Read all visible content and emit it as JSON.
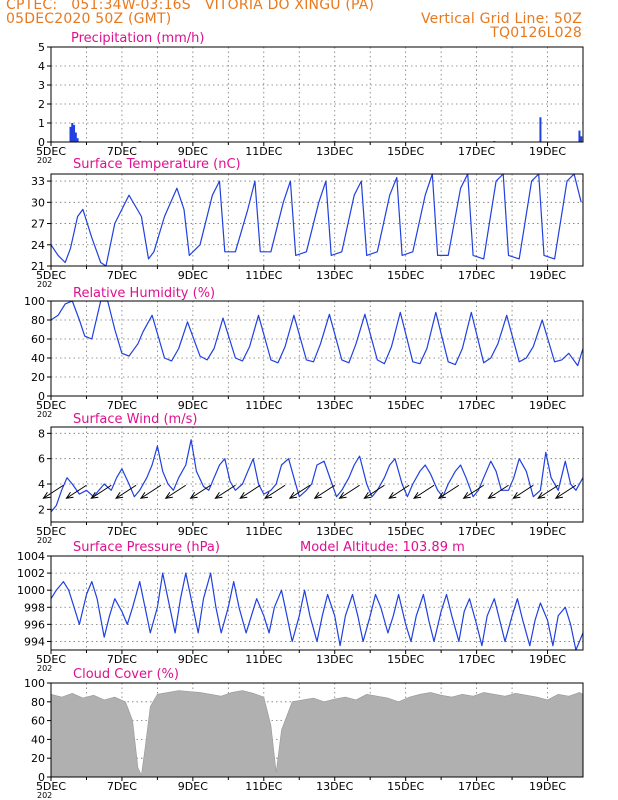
{
  "header": {
    "line1": "CPTEC:   051:34W-03:16S   VITORIA DO XINGU (PA)",
    "line2": "05DEC2020 50Z (GMT)",
    "grid_note": "Vertical Grid Line: 50Z",
    "code": "TQ0126L028"
  },
  "colors": {
    "header": "#e8791e",
    "panel_title": "#e0108f",
    "series": "#2040e0",
    "cloud": "#b0b0b0",
    "arrow": "#000000"
  },
  "x_ticks": [
    "5DEC",
    "7DEC",
    "9DEC",
    "11DEC",
    "13DEC",
    "15DEC",
    "17DEC",
    "19DEC"
  ],
  "x_year_stub": "202",
  "chart_data": [
    {
      "type": "bar",
      "title": "Precipitation (mm/h)",
      "ylim": [
        0,
        5
      ],
      "yticks": [
        "0",
        "1",
        "2",
        "3",
        "4",
        "5"
      ],
      "bars": [
        {
          "day": 0.55,
          "value": 0.8
        },
        {
          "day": 0.6,
          "value": 1.0
        },
        {
          "day": 0.65,
          "value": 0.9
        },
        {
          "day": 0.7,
          "value": 0.5
        },
        {
          "day": 0.75,
          "value": 0.2
        },
        {
          "day": 2.5,
          "value": 0.05
        },
        {
          "day": 8.0,
          "value": 0.05
        },
        {
          "day": 12.5,
          "value": 0.05
        },
        {
          "day": 13.8,
          "value": 1.3
        },
        {
          "day": 14.9,
          "value": 0.6
        },
        {
          "day": 14.95,
          "value": 0.3
        }
      ]
    },
    {
      "type": "line",
      "title": "Surface Temperature (nC)",
      "ylim": [
        21,
        34
      ],
      "yticks": [
        "21",
        "24",
        "27",
        "30",
        "33"
      ],
      "x": [
        0,
        0.2,
        0.4,
        0.55,
        0.75,
        0.9,
        1.15,
        1.4,
        1.55,
        1.8,
        2.2,
        2.55,
        2.75,
        2.9,
        3.2,
        3.55,
        3.75,
        3.9,
        4.2,
        4.55,
        4.75,
        4.9,
        5.2,
        5.55,
        5.75,
        5.9,
        6.2,
        6.55,
        6.75,
        6.9,
        7.2,
        7.55,
        7.75,
        7.9,
        8.2,
        8.55,
        8.75,
        8.9,
        9.2,
        9.55,
        9.75,
        9.9,
        10.2,
        10.55,
        10.75,
        10.9,
        11.2,
        11.55,
        11.75,
        11.9,
        12.2,
        12.55,
        12.75,
        12.9,
        13.2,
        13.55,
        13.75,
        13.9,
        14.2,
        14.55,
        14.75,
        14.95
      ],
      "y": [
        24,
        22.5,
        21.5,
        23.5,
        28,
        29,
        25,
        21.5,
        21,
        27,
        31,
        28,
        22,
        23,
        28,
        32,
        29,
        22.5,
        24,
        31,
        33,
        23,
        23,
        29,
        33,
        23,
        23,
        30,
        33,
        22.5,
        23,
        30,
        33,
        22.5,
        23,
        31,
        33,
        22.5,
        23,
        31,
        33.5,
        22.5,
        23,
        31,
        34,
        22.5,
        22.5,
        32,
        34,
        22.5,
        22,
        33,
        34.5,
        22.5,
        22,
        33,
        34.5,
        22.5,
        22,
        33,
        34,
        30
      ]
    },
    {
      "type": "line",
      "title": "Relative Humidity (%)",
      "ylim": [
        0,
        100
      ],
      "yticks": [
        "0",
        "20",
        "40",
        "60",
        "80",
        "100"
      ],
      "x": [
        0,
        0.2,
        0.4,
        0.6,
        0.8,
        0.95,
        1.15,
        1.4,
        1.6,
        1.8,
        2.0,
        2.2,
        2.45,
        2.6,
        2.85,
        3.2,
        3.4,
        3.6,
        3.85,
        4.2,
        4.4,
        4.6,
        4.85,
        5.2,
        5.4,
        5.6,
        5.85,
        6.2,
        6.4,
        6.6,
        6.85,
        7.2,
        7.4,
        7.6,
        7.85,
        8.2,
        8.4,
        8.6,
        8.85,
        9.2,
        9.4,
        9.6,
        9.85,
        10.2,
        10.4,
        10.6,
        10.85,
        11.2,
        11.4,
        11.6,
        11.85,
        12.2,
        12.4,
        12.6,
        12.85,
        13.2,
        13.4,
        13.6,
        13.85,
        14.2,
        14.4,
        14.6,
        14.85,
        15.0
      ],
      "y": [
        80,
        85,
        97,
        100,
        80,
        63,
        60,
        100,
        100,
        70,
        45,
        42,
        55,
        68,
        85,
        40,
        37,
        50,
        78,
        42,
        38,
        50,
        82,
        40,
        37,
        52,
        85,
        38,
        35,
        52,
        85,
        38,
        36,
        55,
        86,
        38,
        35,
        55,
        86,
        38,
        34,
        52,
        88,
        36,
        34,
        50,
        88,
        36,
        33,
        50,
        88,
        35,
        40,
        55,
        85,
        36,
        40,
        52,
        80,
        36,
        38,
        45,
        32,
        50
      ]
    },
    {
      "type": "line",
      "title": "Surface Wind (m/s)",
      "ylim": [
        1,
        8.5
      ],
      "yticks": [
        "2",
        "4",
        "6",
        "8"
      ],
      "x": [
        0,
        0.15,
        0.3,
        0.45,
        0.6,
        0.8,
        1.0,
        1.2,
        1.35,
        1.5,
        1.7,
        1.85,
        2.0,
        2.2,
        2.35,
        2.5,
        2.7,
        2.85,
        3.0,
        3.15,
        3.3,
        3.45,
        3.6,
        3.8,
        3.95,
        4.1,
        4.3,
        4.45,
        4.6,
        4.75,
        4.9,
        5.05,
        5.2,
        5.4,
        5.55,
        5.7,
        5.85,
        6.0,
        6.2,
        6.35,
        6.5,
        6.7,
        6.85,
        7.0,
        7.2,
        7.35,
        7.5,
        7.7,
        7.9,
        8.05,
        8.2,
        8.4,
        8.55,
        8.7,
        8.9,
        9.05,
        9.2,
        9.4,
        9.55,
        9.7,
        9.9,
        10.05,
        10.2,
        10.4,
        10.55,
        10.7,
        10.9,
        11.05,
        11.2,
        11.4,
        11.55,
        11.7,
        11.9,
        12.05,
        12.2,
        12.4,
        12.55,
        12.7,
        12.9,
        13.05,
        13.2,
        13.4,
        13.6,
        13.8,
        13.95,
        14.1,
        14.3,
        14.5,
        14.65,
        14.8,
        15.0
      ],
      "y": [
        1.8,
        2.3,
        3.5,
        4.5,
        4.0,
        3.2,
        3.5,
        3.0,
        3.5,
        4.0,
        3.5,
        4.5,
        5.2,
        4.0,
        3.0,
        3.5,
        4.5,
        5.5,
        7.0,
        5.0,
        4.0,
        3.5,
        4.5,
        5.5,
        7.5,
        5.0,
        3.8,
        3.5,
        4.5,
        5.5,
        6.0,
        4.2,
        3.5,
        4.0,
        5.0,
        6.0,
        4.0,
        3.2,
        3.5,
        4.0,
        5.5,
        6.0,
        4.5,
        3.0,
        3.5,
        4.0,
        5.5,
        5.8,
        4.2,
        3.0,
        3.5,
        4.5,
        5.5,
        6.2,
        4.0,
        3.0,
        3.5,
        4.5,
        5.5,
        6.0,
        4.0,
        3.0,
        4.0,
        5.0,
        5.5,
        4.8,
        3.5,
        3.0,
        4.0,
        5.0,
        5.5,
        4.5,
        3.0,
        3.5,
        4.5,
        5.8,
        5.0,
        3.5,
        3.5,
        4.5,
        6.0,
        5.0,
        3.0,
        3.5,
        6.5,
        4.5,
        3.5,
        5.8,
        4.0,
        3.5,
        4.5
      ],
      "arrow_days": [
        0.35,
        1.0,
        1.7,
        2.4,
        3.1,
        3.8,
        4.5,
        5.2,
        5.9,
        6.6,
        7.3,
        8.0,
        8.7,
        9.4,
        10.1,
        10.8,
        11.5,
        12.2,
        12.9,
        13.6,
        14.3,
        14.8
      ],
      "arrow_level": 3.9
    },
    {
      "type": "line",
      "title": "Surface Pressure (hPa)",
      "annotation": "Model Altitude: 103.89  m",
      "ylim": [
        993,
        1004
      ],
      "yticks": [
        "994",
        "996",
        "998",
        "1000",
        "1002",
        "1004"
      ],
      "x": [
        0,
        0.15,
        0.35,
        0.5,
        0.65,
        0.8,
        1.0,
        1.15,
        1.3,
        1.5,
        1.65,
        1.8,
        2.0,
        2.15,
        2.3,
        2.5,
        2.65,
        2.8,
        3.0,
        3.15,
        3.3,
        3.5,
        3.65,
        3.8,
        4.0,
        4.15,
        4.3,
        4.5,
        4.65,
        4.8,
        5.0,
        5.15,
        5.3,
        5.5,
        5.65,
        5.8,
        6.0,
        6.15,
        6.3,
        6.5,
        6.65,
        6.8,
        7.0,
        7.15,
        7.3,
        7.5,
        7.65,
        7.8,
        8.0,
        8.15,
        8.3,
        8.5,
        8.65,
        8.8,
        9.0,
        9.15,
        9.3,
        9.5,
        9.65,
        9.8,
        10.0,
        10.15,
        10.3,
        10.5,
        10.65,
        10.8,
        11.0,
        11.15,
        11.3,
        11.5,
        11.65,
        11.8,
        12.0,
        12.15,
        12.3,
        12.5,
        12.65,
        12.8,
        13.0,
        13.15,
        13.3,
        13.5,
        13.65,
        13.8,
        14.0,
        14.15,
        14.3,
        14.5,
        14.65,
        14.8,
        15.0
      ],
      "y": [
        999,
        1000,
        1001,
        1000,
        998,
        996,
        999.5,
        1001,
        999,
        994.5,
        997,
        999,
        997.5,
        996,
        998,
        1001,
        998,
        995,
        998,
        1002,
        999,
        995,
        999,
        1002,
        998,
        995,
        999,
        1002,
        998,
        995,
        998,
        1001,
        998,
        995,
        997,
        999,
        997,
        995,
        998,
        1000,
        997,
        994,
        997,
        1000,
        997,
        994,
        997,
        999.5,
        997,
        993.5,
        997,
        999.5,
        997,
        994,
        997,
        999.5,
        998,
        995,
        997,
        999.5,
        996,
        994,
        997,
        999.5,
        996.5,
        994,
        997.5,
        999.5,
        997,
        994,
        997.5,
        999,
        996,
        993.5,
        997,
        999,
        996.5,
        994,
        997,
        999,
        996.5,
        993.5,
        996.5,
        998.5,
        996.5,
        993.5,
        997,
        998,
        996,
        993,
        995
      ]
    },
    {
      "type": "area",
      "title": "Cloud Cover (%)",
      "ylim": [
        0,
        100
      ],
      "yticks": [
        "0",
        "20",
        "40",
        "60",
        "80",
        "100"
      ],
      "x": [
        0,
        0.3,
        0.6,
        0.9,
        1.2,
        1.5,
        1.8,
        2.1,
        2.3,
        2.45,
        2.55,
        2.65,
        2.8,
        3.0,
        3.3,
        3.6,
        3.9,
        4.2,
        4.5,
        4.8,
        5.1,
        5.4,
        5.7,
        6.0,
        6.2,
        6.35,
        6.5,
        6.8,
        7.1,
        7.4,
        7.7,
        8.0,
        8.3,
        8.6,
        8.9,
        9.2,
        9.5,
        9.8,
        10.1,
        10.4,
        10.7,
        11.0,
        11.3,
        11.6,
        11.9,
        12.2,
        12.5,
        12.8,
        13.1,
        13.4,
        13.7,
        14.0,
        14.3,
        14.6,
        14.9,
        15.0
      ],
      "y": [
        88,
        85,
        89,
        84,
        87,
        82,
        85,
        80,
        60,
        10,
        2,
        30,
        75,
        88,
        90,
        92,
        91,
        90,
        88,
        86,
        90,
        92,
        89,
        85,
        55,
        5,
        50,
        80,
        82,
        84,
        80,
        83,
        85,
        82,
        88,
        86,
        84,
        80,
        85,
        88,
        90,
        87,
        85,
        88,
        86,
        90,
        88,
        86,
        89,
        87,
        85,
        82,
        88,
        86,
        90,
        88
      ]
    }
  ]
}
